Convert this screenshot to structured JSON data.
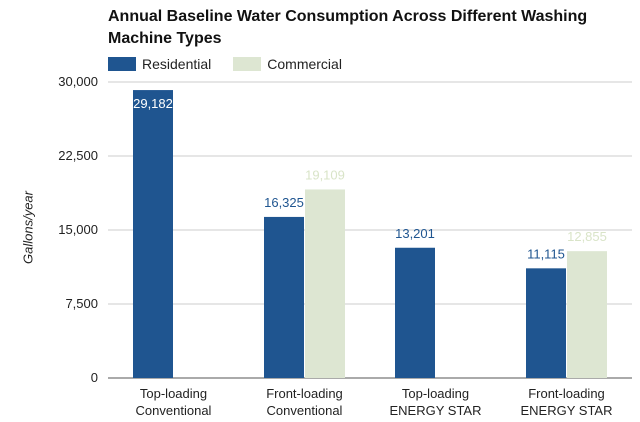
{
  "chart_data": {
    "type": "bar",
    "title": "Annual Baseline Water Consumption Across Different Washing Machine Types",
    "xlabel": "",
    "ylabel": "Gallons/year",
    "ylim": [
      0,
      30000
    ],
    "yticks": [
      "0",
      "7,500",
      "15,000",
      "22,500",
      "30,000"
    ],
    "ytick_values": [
      0,
      7500,
      15000,
      22500,
      30000
    ],
    "grid": true,
    "legend_position": "top-left",
    "categories": [
      [
        "Top-loading",
        "Conventional"
      ],
      [
        "Front-loading",
        "Conventional"
      ],
      [
        "Top-loading",
        "ENERGY STAR"
      ],
      [
        "Front-loading",
        "ENERGY STAR"
      ]
    ],
    "series": [
      {
        "name": "Residential",
        "color": "#1f5590",
        "label_color": "#1f5590",
        "values": [
          29182,
          16325,
          13201,
          11115
        ],
        "labels": [
          "29,182",
          "16,325",
          "13,201",
          "11,115"
        ]
      },
      {
        "name": "Commercial",
        "color": "#dde6d2",
        "label_color": "#d9e4c8",
        "values": [
          null,
          19109,
          null,
          12855
        ],
        "labels": [
          "",
          "19,109",
          "",
          "12,855"
        ]
      }
    ]
  }
}
